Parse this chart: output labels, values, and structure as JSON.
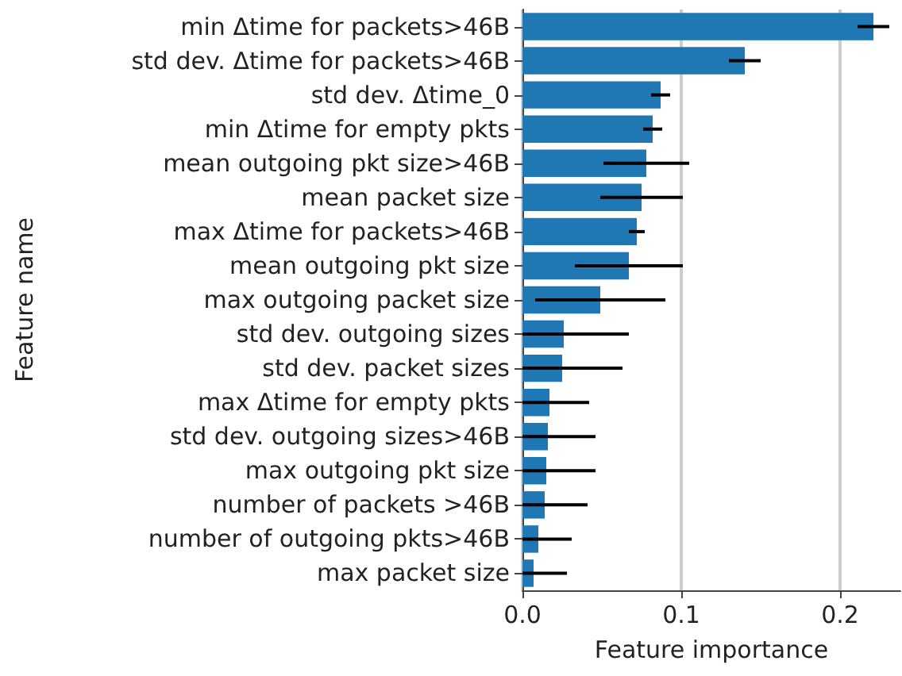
{
  "chart_data": {
    "type": "bar",
    "orientation": "horizontal",
    "xlabel": "Feature importance",
    "ylabel": "Feature name",
    "categories": [
      "min Δtime for packets>46B",
      "std dev. Δtime for packets>46B",
      "std dev. Δtime_0",
      "min Δtime for empty pkts",
      "mean outgoing pkt size>46B",
      "mean packet size",
      "max Δtime for packets>46B",
      "mean outgoing pkt size",
      "max outgoing packet size",
      "std dev. outgoing sizes",
      "std dev. packet sizes",
      "max Δtime for empty pkts",
      "std dev. outgoing sizes>46B",
      "max outgoing pkt size",
      "number of packets >46B",
      "number of outgoing pkts>46B",
      "max packet size"
    ],
    "values": [
      0.221,
      0.14,
      0.087,
      0.082,
      0.078,
      0.075,
      0.072,
      0.067,
      0.049,
      0.026,
      0.025,
      0.017,
      0.016,
      0.015,
      0.014,
      0.01,
      0.007
    ],
    "errors": [
      0.01,
      0.01,
      0.006,
      0.006,
      0.027,
      0.026,
      0.005,
      0.034,
      0.041,
      [
        0,
        0.067
      ],
      [
        0,
        0.063
      ],
      [
        0,
        0.042
      ],
      [
        0,
        0.046
      ],
      [
        0,
        0.046
      ],
      [
        0,
        0.041
      ],
      [
        0,
        0.031
      ],
      [
        0,
        0.028
      ]
    ],
    "color": "#1f77b4",
    "xlim": [
      0,
      0.238
    ],
    "xticks": [
      {
        "value": 0,
        "label": "0.0"
      },
      {
        "value": 0.1,
        "label": "0.1"
      },
      {
        "value": 0.2,
        "label": "0.2"
      }
    ],
    "grid": "x"
  }
}
